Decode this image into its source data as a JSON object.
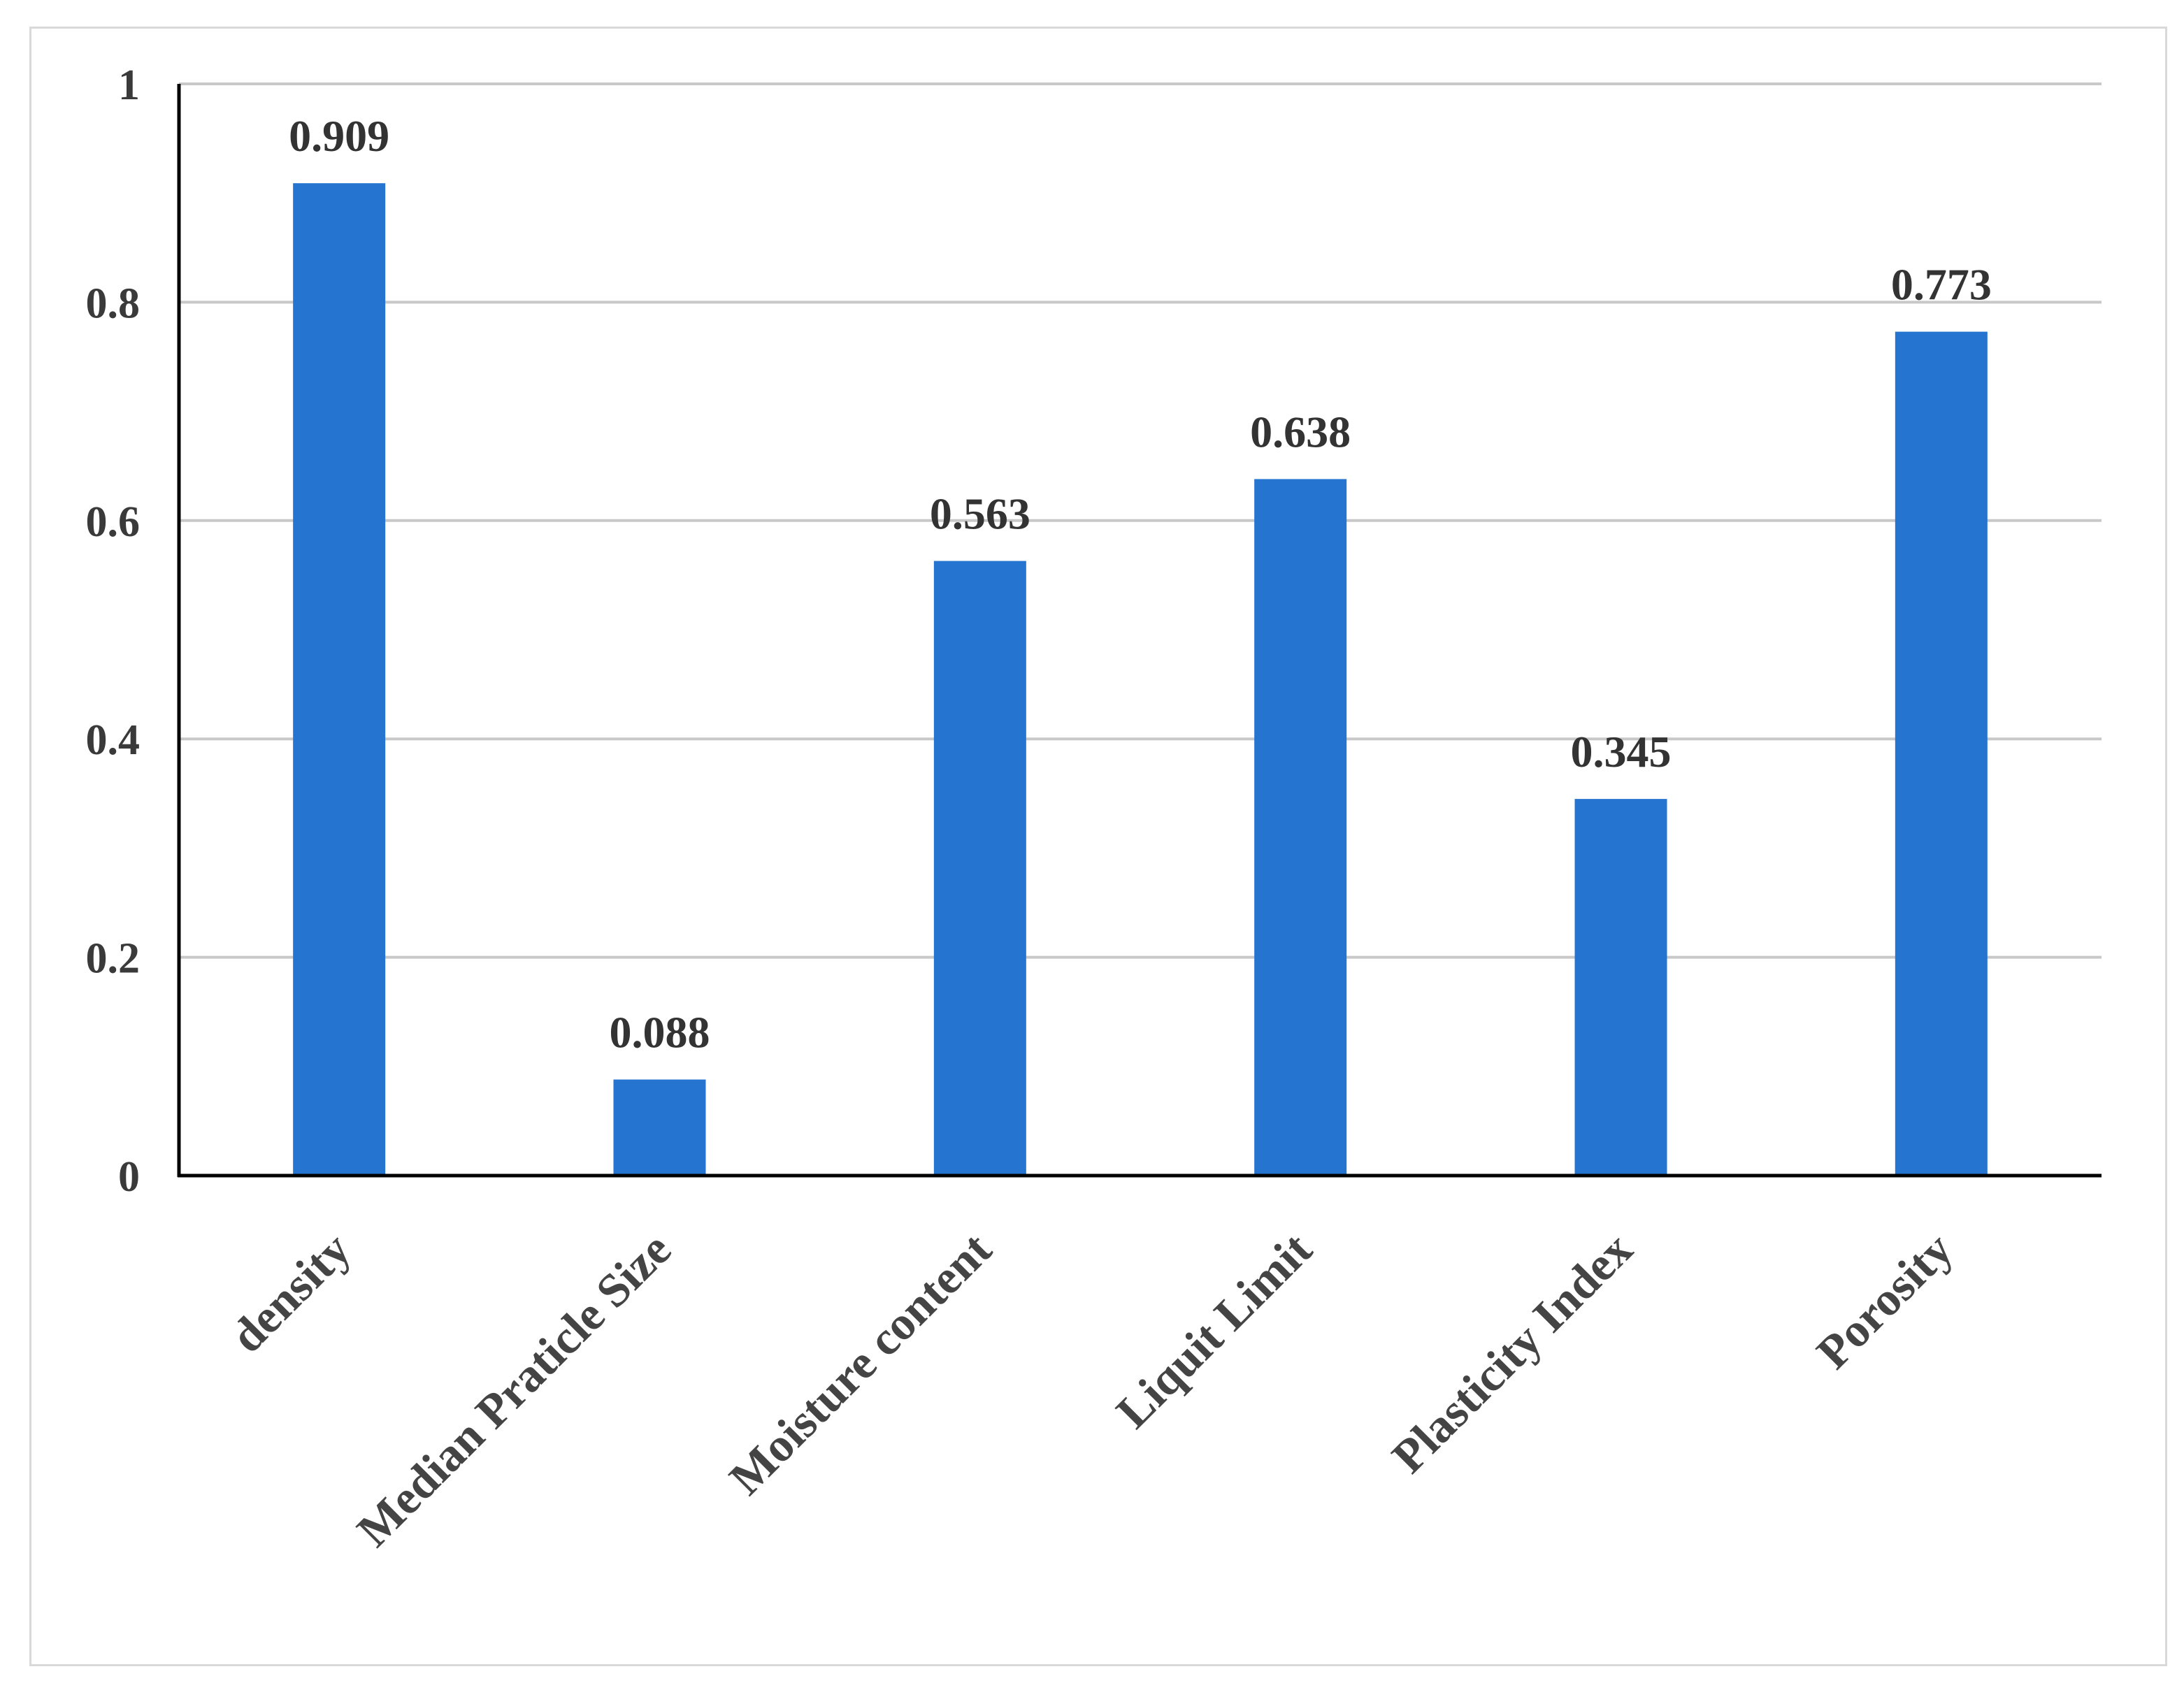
{
  "chart_data": {
    "type": "bar",
    "title": "",
    "xlabel": "",
    "ylabel": "",
    "categories": [
      "density",
      "Median Praticle Size",
      "Moisture content",
      "Liquit Limit",
      "Plasticity Index",
      "Porosity"
    ],
    "values": [
      0.909,
      0.088,
      0.563,
      0.638,
      0.345,
      0.773
    ],
    "data_labels": [
      "0.909",
      "0.088",
      "0.563",
      "0.638",
      "0.345",
      "0.773"
    ],
    "ylim": [
      0,
      1
    ],
    "yticks": [
      0,
      0.2,
      0.4,
      0.6,
      0.8,
      1
    ],
    "ytick_labels": [
      "0",
      "0.2",
      "0.4",
      "0.6",
      "0.8",
      "1"
    ],
    "grid": true,
    "legend": "none",
    "bar_color": "#2574d0"
  }
}
